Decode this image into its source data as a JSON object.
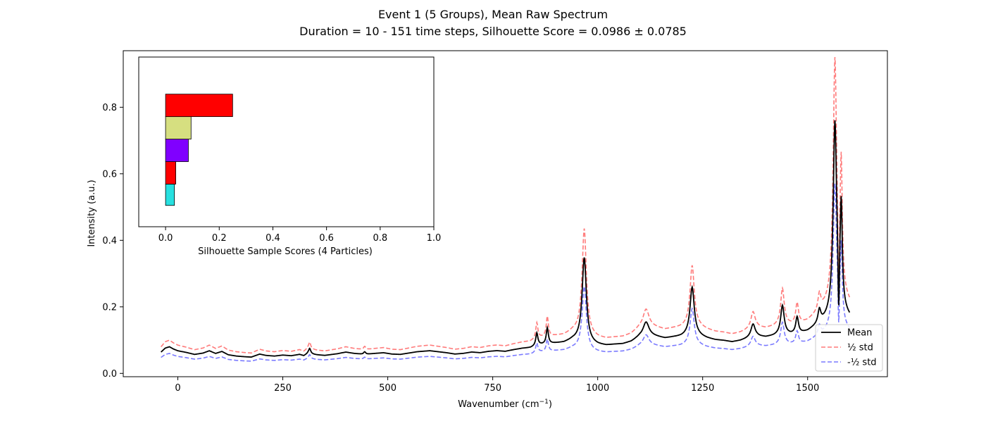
{
  "chart_data": [
    {
      "type": "line",
      "title": "Event 1 (5 Groups), Mean Raw Spectrum",
      "subtitle": "Duration = 10 - 151 time steps, Silhouette Score = 0.0986 ± 0.0785",
      "xlabel": "Wavenumber (cm",
      "xlabel_sup": "−1",
      "xlabel_tail": ")",
      "ylabel": "Intensity (a.u.)",
      "xlim": [
        -130,
        1690
      ],
      "ylim": [
        -0.01,
        0.97
      ],
      "xticks": [
        0,
        250,
        500,
        750,
        1000,
        1250,
        1500
      ],
      "yticks": [
        0.0,
        0.2,
        0.4,
        0.6,
        0.8
      ],
      "ytick_labels": [
        "0.0",
        "0.2",
        "0.4",
        "0.6",
        "0.8"
      ],
      "grid": false,
      "legend_position": "lower-right",
      "x_range": [
        -40,
        1600
      ],
      "baseline": [
        [
          -40,
          0.064
        ],
        [
          -30,
          0.076
        ],
        [
          -20,
          0.08
        ],
        [
          -10,
          0.073
        ],
        [
          0,
          0.068
        ],
        [
          20,
          0.063
        ],
        [
          40,
          0.057
        ],
        [
          60,
          0.061
        ],
        [
          75,
          0.068
        ],
        [
          90,
          0.06
        ],
        [
          105,
          0.066
        ],
        [
          120,
          0.056
        ],
        [
          140,
          0.052
        ],
        [
          160,
          0.05
        ],
        [
          175,
          0.049
        ],
        [
          195,
          0.058
        ],
        [
          210,
          0.054
        ],
        [
          230,
          0.052
        ],
        [
          250,
          0.055
        ],
        [
          270,
          0.053
        ],
        [
          290,
          0.057
        ],
        [
          300,
          0.053
        ],
        [
          310,
          0.06
        ],
        [
          330,
          0.056
        ],
        [
          350,
          0.054
        ],
        [
          380,
          0.059
        ],
        [
          400,
          0.064
        ],
        [
          420,
          0.06
        ],
        [
          445,
          0.057
        ],
        [
          470,
          0.06
        ],
        [
          490,
          0.062
        ],
        [
          510,
          0.058
        ],
        [
          530,
          0.057
        ],
        [
          550,
          0.061
        ],
        [
          570,
          0.065
        ],
        [
          600,
          0.068
        ],
        [
          620,
          0.065
        ],
        [
          640,
          0.062
        ],
        [
          660,
          0.058
        ],
        [
          680,
          0.06
        ],
        [
          700,
          0.064
        ],
        [
          720,
          0.062
        ],
        [
          740,
          0.066
        ],
        [
          760,
          0.068
        ],
        [
          780,
          0.066
        ],
        [
          800,
          0.071
        ],
        [
          820,
          0.075
        ],
        [
          840,
          0.077
        ],
        [
          860,
          0.085
        ],
        [
          880,
          0.088
        ],
        [
          900,
          0.09
        ],
        [
          920,
          0.092
        ],
        [
          940,
          0.1
        ],
        [
          960,
          0.1
        ],
        [
          980,
          0.09
        ],
        [
          1000,
          0.085
        ],
        [
          1020,
          0.083
        ],
        [
          1040,
          0.086
        ],
        [
          1060,
          0.088
        ],
        [
          1080,
          0.095
        ],
        [
          1100,
          0.11
        ],
        [
          1120,
          0.115
        ],
        [
          1140,
          0.11
        ],
        [
          1160,
          0.105
        ],
        [
          1180,
          0.108
        ],
        [
          1200,
          0.11
        ],
        [
          1220,
          0.115
        ],
        [
          1240,
          0.112
        ],
        [
          1260,
          0.105
        ],
        [
          1280,
          0.1
        ],
        [
          1300,
          0.098
        ],
        [
          1320,
          0.094
        ],
        [
          1340,
          0.098
        ],
        [
          1360,
          0.105
        ],
        [
          1380,
          0.11
        ],
        [
          1400,
          0.108
        ],
        [
          1420,
          0.112
        ],
        [
          1440,
          0.118
        ],
        [
          1460,
          0.116
        ],
        [
          1480,
          0.118
        ],
        [
          1500,
          0.125
        ],
        [
          1520,
          0.14
        ],
        [
          1540,
          0.155
        ],
        [
          1560,
          0.17
        ],
        [
          1580,
          0.185
        ],
        [
          1600,
          0.165
        ]
      ],
      "peaks": [
        {
          "x": 314,
          "height": 0.016,
          "width": 3
        },
        {
          "x": 445,
          "height": 0.008,
          "width": 3
        },
        {
          "x": 855,
          "height": 0.038,
          "width": 3
        },
        {
          "x": 880,
          "height": 0.048,
          "width": 3
        },
        {
          "x": 968,
          "height": 0.252,
          "width": 6
        },
        {
          "x": 1115,
          "height": 0.04,
          "width": 8
        },
        {
          "x": 1225,
          "height": 0.145,
          "width": 6
        },
        {
          "x": 1370,
          "height": 0.04,
          "width": 6
        },
        {
          "x": 1440,
          "height": 0.085,
          "width": 5
        },
        {
          "x": 1475,
          "height": 0.05,
          "width": 4
        },
        {
          "x": 1528,
          "height": 0.04,
          "width": 4
        },
        {
          "x": 1565,
          "height": 0.575,
          "width": 5
        },
        {
          "x": 1580,
          "height": 0.29,
          "width": 3
        }
      ],
      "notch": {
        "x": 1574,
        "depth": 0.17,
        "width": 2
      },
      "series": [
        {
          "name": "Mean",
          "color": "#000000",
          "dash": "solid",
          "scale": 1.0
        },
        {
          "name": "½ std",
          "color": "#ff7a7a",
          "dash": "dashed",
          "scale": 1.25
        },
        {
          "name": "-½ std",
          "color": "#7a7aff",
          "dash": "dashed",
          "scale": 0.75
        }
      ]
    },
    {
      "type": "bar",
      "orientation": "horizontal",
      "xlabel": "Silhouette Sample Scores (4 Particles)",
      "xlim": [
        -0.1,
        1.0
      ],
      "ylim": [
        0.53,
        0.96
      ],
      "xticks": [
        0.0,
        0.2,
        0.4,
        0.6,
        0.8,
        1.0
      ],
      "xtick_labels": [
        "0.0",
        "0.2",
        "0.4",
        "0.6",
        "0.8",
        "1.0"
      ],
      "bars": [
        {
          "y_low": 0.584,
          "y_high": 0.638,
          "value": 0.033,
          "color": "#27e0e0"
        },
        {
          "y_low": 0.638,
          "y_high": 0.695,
          "value": 0.038,
          "color": "#ff0000"
        },
        {
          "y_low": 0.695,
          "y_high": 0.752,
          "value": 0.085,
          "color": "#8000ff"
        },
        {
          "y_low": 0.752,
          "y_high": 0.809,
          "value": 0.095,
          "color": "#d6df80"
        },
        {
          "y_low": 0.809,
          "y_high": 0.866,
          "value": 0.25,
          "color": "#ff0000"
        }
      ]
    }
  ]
}
